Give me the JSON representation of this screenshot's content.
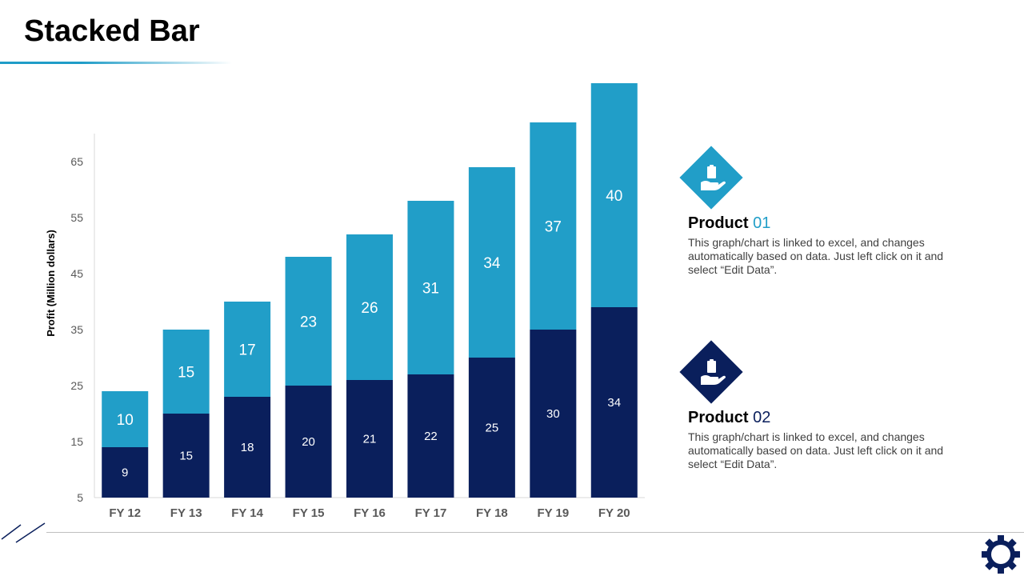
{
  "page": {
    "title": "Stacked Bar"
  },
  "legend": [
    {
      "name_word": "Product",
      "name_num": "01",
      "color": "#219ec8",
      "description": "This graph/chart is linked to excel, and changes automatically based on data. Just left click on it and select “Edit Data”.",
      "icon": "hand-clipboard-icon"
    },
    {
      "name_word": "Product",
      "name_num": "02",
      "color": "#0a1f5c",
      "description": "This graph/chart is linked to excel, and changes automatically based on data. Just left click on it and select “Edit Data”.",
      "icon": "hand-clipboard-icon"
    }
  ],
  "chart_data": {
    "type": "bar",
    "stacked": true,
    "title": "",
    "xlabel": "",
    "ylabel": "Profit  (Million dollars)",
    "categories": [
      "FY 12",
      "FY 13",
      "FY 14",
      "FY 15",
      "FY 16",
      "FY 17",
      "FY 18",
      "FY 19",
      "FY 20"
    ],
    "yticks": [
      5,
      15,
      25,
      35,
      45,
      55,
      65
    ],
    "ylim": [
      5,
      70
    ],
    "grid": false,
    "series": [
      {
        "name": "Product 02",
        "color": "#0a1f5c",
        "values": [
          9,
          15,
          18,
          20,
          21,
          22,
          25,
          30,
          34
        ]
      },
      {
        "name": "Product 01",
        "color": "#219ec8",
        "values": [
          10,
          15,
          17,
          23,
          26,
          31,
          34,
          37,
          40
        ]
      }
    ]
  }
}
